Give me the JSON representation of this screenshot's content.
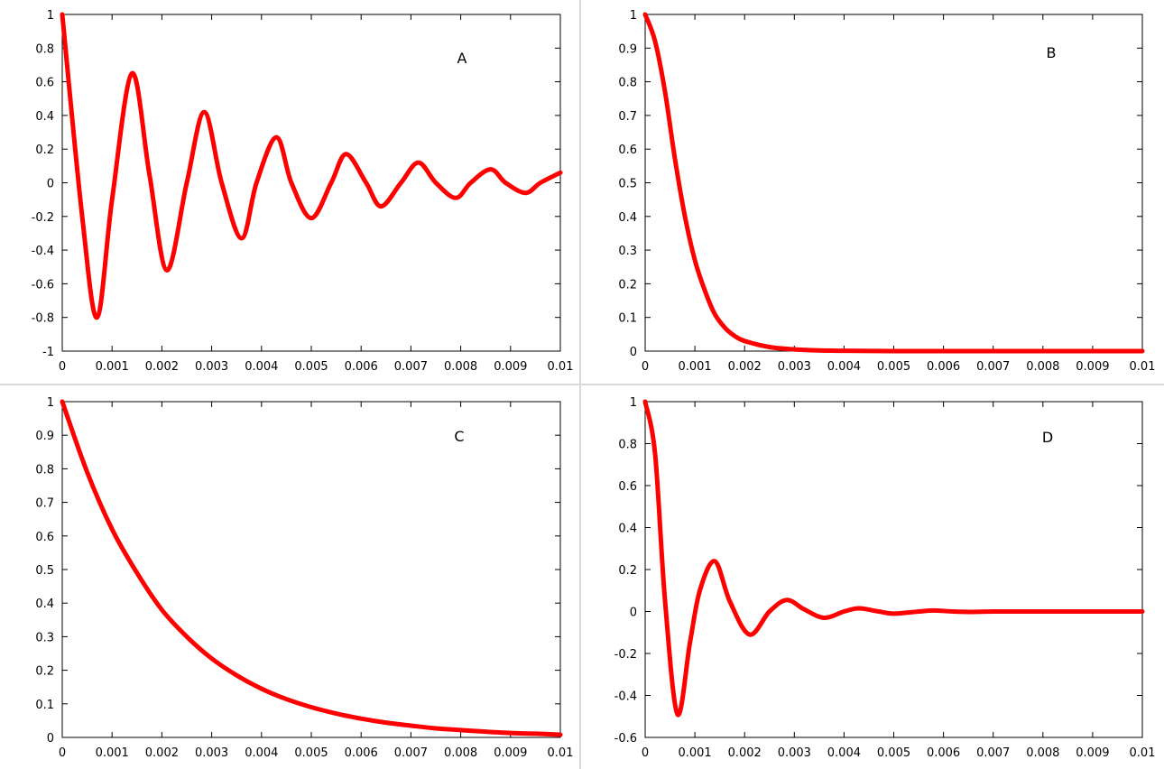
{
  "style": {
    "curve_color": "#ff0000",
    "axis_color": "#000000",
    "background": "#ffffff"
  },
  "chart_data": [
    {
      "panel": "A",
      "type": "line",
      "title": "",
      "xlabel": "",
      "ylabel": "",
      "xlim": [
        0,
        0.01
      ],
      "ylim": [
        -1,
        1
      ],
      "x_ticks": [
        "0",
        "0.001",
        "0.002",
        "0.003",
        "0.004",
        "0.005",
        "0.006",
        "0.007",
        "0.008",
        "0.009",
        "0.01"
      ],
      "y_ticks": [
        "1",
        "0.8",
        "0.6",
        "0.4",
        "0.2",
        "0",
        "-0.2",
        "-0.4",
        "-0.6",
        "-0.8",
        "-1"
      ],
      "grid": false,
      "series": [
        {
          "x": [
            0,
            0.0004,
            0.0007,
            0.001,
            0.0014,
            0.00175,
            0.0021,
            0.0025,
            0.00285,
            0.0032,
            0.0036,
            0.0039,
            0.0043,
            0.0046,
            0.005,
            0.0054,
            0.0057,
            0.0061,
            0.0064,
            0.0068,
            0.00715,
            0.0075,
            0.0079,
            0.0082,
            0.0086,
            0.0089,
            0.0093,
            0.0096,
            0.01
          ],
          "y": [
            1.0,
            -0.2,
            -0.8,
            -0.1,
            0.65,
            0.05,
            -0.52,
            0.0,
            0.42,
            0.0,
            -0.33,
            0.0,
            0.27,
            0.0,
            -0.21,
            0.0,
            0.17,
            0.0,
            -0.14,
            0.0,
            0.12,
            0.0,
            -0.09,
            0.0,
            0.08,
            0.0,
            -0.06,
            0.0,
            0.06
          ]
        }
      ]
    },
    {
      "panel": "B",
      "type": "line",
      "title": "",
      "xlabel": "",
      "ylabel": "",
      "xlim": [
        0,
        0.01
      ],
      "ylim": [
        0,
        1
      ],
      "x_ticks": [
        "0",
        "0.001",
        "0.002",
        "0.003",
        "0.004",
        "0.005",
        "0.006",
        "0.007",
        "0.008",
        "0.009",
        "0.01"
      ],
      "y_ticks": [
        "1",
        "0.9",
        "0.8",
        "0.7",
        "0.6",
        "0.5",
        "0.4",
        "0.3",
        "0.2",
        "0.1",
        "0"
      ],
      "grid": false,
      "series": [
        {
          "x": [
            0,
            0.0002,
            0.0004,
            0.0006,
            0.0008,
            0.001,
            0.0012,
            0.0014,
            0.0016,
            0.0018,
            0.002,
            0.0025,
            0.003,
            0.0035,
            0.004,
            0.005,
            0.006,
            0.007,
            0.008,
            0.009,
            0.01
          ],
          "y": [
            1.0,
            0.92,
            0.77,
            0.57,
            0.4,
            0.27,
            0.18,
            0.11,
            0.07,
            0.045,
            0.03,
            0.012,
            0.005,
            0.002,
            0.001,
            0.0,
            0.0,
            0.0,
            0.0,
            0.0,
            0.0
          ]
        }
      ]
    },
    {
      "panel": "C",
      "type": "line",
      "title": "",
      "xlabel": "",
      "ylabel": "",
      "xlim": [
        0,
        0.01
      ],
      "ylim": [
        0,
        1
      ],
      "x_ticks": [
        "0",
        "0.001",
        "0.002",
        "0.003",
        "0.004",
        "0.005",
        "0.006",
        "0.007",
        "0.008",
        "0.009",
        "0.01"
      ],
      "y_ticks": [
        "1",
        "0.9",
        "0.8",
        "0.7",
        "0.6",
        "0.5",
        "0.4",
        "0.3",
        "0.2",
        "0.1",
        "0"
      ],
      "grid": false,
      "series": [
        {
          "x": [
            0,
            0.0005,
            0.001,
            0.0015,
            0.002,
            0.0025,
            0.003,
            0.0035,
            0.004,
            0.0045,
            0.005,
            0.0055,
            0.006,
            0.0065,
            0.007,
            0.0075,
            0.008,
            0.0085,
            0.009,
            0.0095,
            0.01
          ],
          "y": [
            1.0,
            0.79,
            0.62,
            0.49,
            0.38,
            0.3,
            0.235,
            0.185,
            0.145,
            0.114,
            0.09,
            0.071,
            0.056,
            0.044,
            0.035,
            0.027,
            0.022,
            0.017,
            0.013,
            0.011,
            0.008
          ]
        }
      ]
    },
    {
      "panel": "D",
      "type": "line",
      "title": "",
      "xlabel": "",
      "ylabel": "",
      "xlim": [
        0,
        0.01
      ],
      "ylim": [
        -0.6,
        1
      ],
      "x_ticks": [
        "0",
        "0.001",
        "0.002",
        "0.003",
        "0.004",
        "0.005",
        "0.006",
        "0.007",
        "0.008",
        "0.009",
        "0.01"
      ],
      "y_ticks": [
        "1",
        "0.8",
        "0.6",
        "0.4",
        "0.2",
        "0",
        "-0.2",
        "-0.4",
        "-0.6"
      ],
      "grid": false,
      "series": [
        {
          "x": [
            0,
            0.0002,
            0.0004,
            0.00065,
            0.0009,
            0.0011,
            0.0014,
            0.0017,
            0.0021,
            0.0025,
            0.00285,
            0.0032,
            0.0036,
            0.004,
            0.0043,
            0.0047,
            0.005,
            0.0055,
            0.0058,
            0.0062,
            0.0066,
            0.007,
            0.008,
            0.009,
            0.01
          ],
          "y": [
            1.0,
            0.75,
            0.05,
            -0.49,
            -0.15,
            0.1,
            0.24,
            0.05,
            -0.11,
            0.0,
            0.055,
            0.01,
            -0.03,
            0.0,
            0.015,
            0.0,
            -0.01,
            0.0,
            0.005,
            0.0,
            -0.002,
            0.0,
            0.0,
            0.0,
            0.0
          ]
        }
      ]
    }
  ]
}
